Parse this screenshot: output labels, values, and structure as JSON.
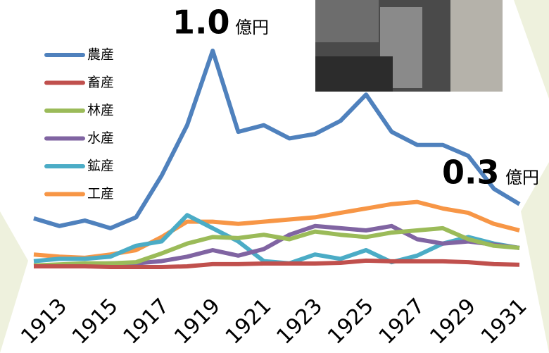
{
  "chart_data": {
    "type": "line",
    "categories": [
      null,
      "1913",
      null,
      "1915",
      null,
      "1917",
      null,
      "1919",
      null,
      "1921",
      null,
      "1923",
      null,
      "1925",
      null,
      "1927",
      null,
      "1929",
      null,
      "1931"
    ],
    "series": [
      {
        "name": "農産",
        "color": "#4f81bd",
        "values": [
          0.235,
          0.2,
          0.225,
          0.19,
          0.24,
          0.43,
          0.66,
          1.0,
          0.63,
          0.66,
          0.6,
          0.62,
          0.68,
          0.8,
          0.63,
          0.57,
          0.57,
          0.52,
          0.37,
          0.3
        ]
      },
      {
        "name": "畜産",
        "color": "#c0504d",
        "values": [
          0.016,
          0.016,
          0.016,
          0.013,
          0.013,
          0.013,
          0.016,
          0.026,
          0.026,
          0.029,
          0.029,
          0.029,
          0.032,
          0.042,
          0.039,
          0.039,
          0.039,
          0.035,
          0.026,
          0.023
        ]
      },
      {
        "name": "林産",
        "color": "#9bbb59",
        "values": [
          0.02,
          0.025,
          0.03,
          0.03,
          0.035,
          0.075,
          0.12,
          0.15,
          0.145,
          0.16,
          0.14,
          0.175,
          0.16,
          0.15,
          0.17,
          0.18,
          0.19,
          0.14,
          0.11,
          0.1
        ]
      },
      {
        "name": "水産",
        "color": "#8064a2",
        "values": [
          0.02,
          0.02,
          0.025,
          0.03,
          0.03,
          0.04,
          0.06,
          0.09,
          0.065,
          0.095,
          0.16,
          0.2,
          0.19,
          0.18,
          0.2,
          0.14,
          0.12,
          0.13,
          0.115,
          0.1
        ]
      },
      {
        "name": "鉱産",
        "color": "#4bacc6",
        "values": [
          0.04,
          0.05,
          0.05,
          0.06,
          0.11,
          0.13,
          0.25,
          0.19,
          0.13,
          0.04,
          0.03,
          0.07,
          0.05,
          0.09,
          0.035,
          0.065,
          0.12,
          0.15,
          0.12,
          0.1
        ]
      },
      {
        "name": "工産",
        "color": "#f79646",
        "values": [
          0.07,
          0.06,
          0.055,
          0.07,
          0.09,
          0.15,
          0.22,
          0.22,
          0.21,
          0.22,
          0.23,
          0.24,
          0.26,
          0.28,
          0.3,
          0.31,
          0.28,
          0.26,
          0.21,
          0.18
        ]
      }
    ],
    "annotations": [
      {
        "text": "1.0",
        "unit": "億円"
      },
      {
        "text": "0.3",
        "unit": "億円"
      }
    ]
  }
}
